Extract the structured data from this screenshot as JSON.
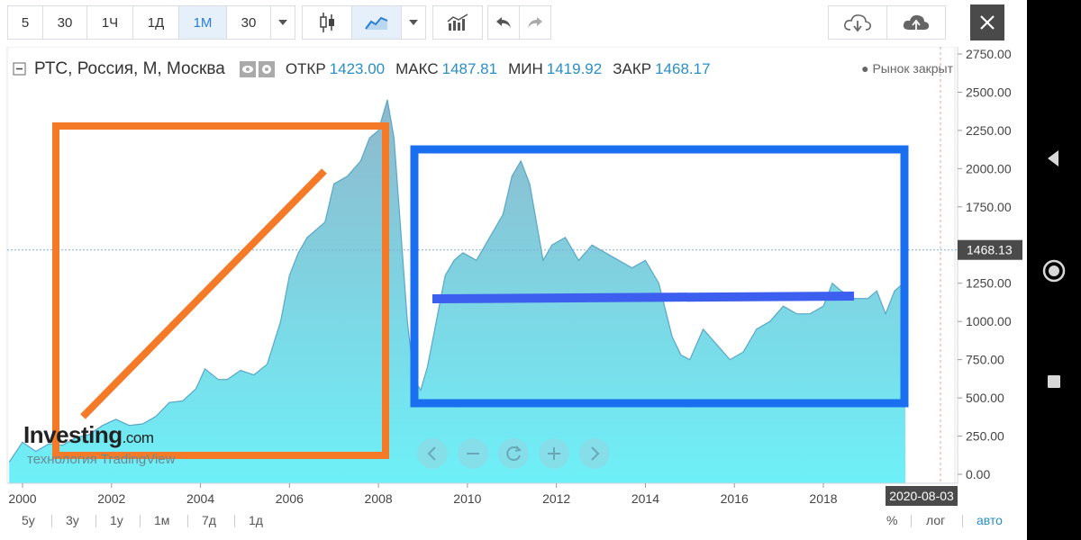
{
  "toolbar": {
    "intervals": [
      "5",
      "30",
      "1Ч",
      "1Д",
      "1М",
      "30"
    ],
    "active_interval": "1М"
  },
  "legend": {
    "title": "РТС, Россия, М, Москва",
    "open_label": "ОТКР",
    "open_value": "1423.00",
    "high_label": "МАКС",
    "high_value": "1487.81",
    "low_label": "МИН",
    "low_value": "1419.92",
    "close_label": "ЗАКР",
    "close_value": "1468.17",
    "market_status": "● Рынок закрыт"
  },
  "watermark": {
    "brand": "Investing",
    "brand_suffix": ".com",
    "tagline": "технология TradingView"
  },
  "colors": {
    "area_fill_top": "#8fb8cc",
    "area_fill_bottom": "#6ef0f8",
    "line": "#5aa7c6",
    "orange_annotation": "#f47a27",
    "blue_annotation": "#1a6ff0",
    "blue_line": "#3c5ff0",
    "price_line": "#7fb0d8"
  },
  "chart_data": {
    "type": "area",
    "title": "РТС, Россия, М, Москва",
    "xlabel": "",
    "ylabel": "",
    "x_ticks": [
      "2000",
      "2002",
      "2004",
      "2006",
      "2008",
      "2010",
      "2012",
      "2014",
      "2016",
      "2018"
    ],
    "y_ticks": [
      "2750.00",
      "2500.00",
      "2250.00",
      "2000.00",
      "1750.00",
      "1500.00",
      "1250.00",
      "1000.00",
      "750.00",
      "500.00",
      "250.00",
      "0.00"
    ],
    "ylim": [
      0,
      2800
    ],
    "xlim": [
      1999.7,
      2021.5
    ],
    "current_price_label": "1468.13",
    "current_price": 1468,
    "date_label": "2020-08-03",
    "grid": false,
    "series": [
      {
        "x": [
          1999.7,
          2000.0,
          2000.3,
          2000.6,
          2000.9,
          2001.2,
          2001.5,
          2001.8,
          2002.1,
          2002.4,
          2002.7,
          2003.0,
          2003.3,
          2003.6,
          2003.9,
          2004.1,
          2004.4,
          2004.6,
          2004.9,
          2005.2,
          2005.5,
          2005.8,
          2006.0,
          2006.2,
          2006.4,
          2006.6,
          2006.8,
          2007.0,
          2007.3,
          2007.6,
          2007.8,
          2008.0,
          2008.2,
          2008.35,
          2008.5,
          2008.65,
          2008.8,
          2008.95,
          2009.1,
          2009.3,
          2009.5,
          2009.7,
          2009.9,
          2010.2,
          2010.5,
          2010.8,
          2011.0,
          2011.2,
          2011.4,
          2011.7,
          2011.9,
          2012.2,
          2012.5,
          2012.8,
          2013.1,
          2013.4,
          2013.7,
          2014.0,
          2014.3,
          2014.6,
          2014.8,
          2015.0,
          2015.3,
          2015.6,
          2015.9,
          2016.2,
          2016.5,
          2016.8,
          2017.1,
          2017.4,
          2017.7,
          2018.0,
          2018.2,
          2018.4,
          2018.7,
          2019.0,
          2019.2,
          2019.4,
          2019.6,
          2019.8,
          2020.0,
          2020.2,
          2020.4,
          2020.6
        ],
        "values": [
          80,
          210,
          150,
          200,
          190,
          240,
          260,
          320,
          360,
          320,
          330,
          380,
          470,
          480,
          560,
          690,
          620,
          620,
          680,
          650,
          720,
          1000,
          1300,
          1450,
          1550,
          1600,
          1650,
          1900,
          1950,
          2050,
          2200,
          2250,
          2450,
          2200,
          1600,
          1000,
          620,
          550,
          700,
          1000,
          1300,
          1400,
          1450,
          1400,
          1550,
          1700,
          1950,
          2050,
          1900,
          1400,
          1500,
          1550,
          1400,
          1500,
          1450,
          1400,
          1350,
          1400,
          1250,
          900,
          780,
          750,
          950,
          850,
          750,
          800,
          950,
          1000,
          1100,
          1050,
          1050,
          1100,
          1250,
          1200,
          1150,
          1150,
          1200,
          1050,
          1200,
          1250,
          1350,
          1300,
          1000,
          1250
        ]
      }
    ]
  }
}
